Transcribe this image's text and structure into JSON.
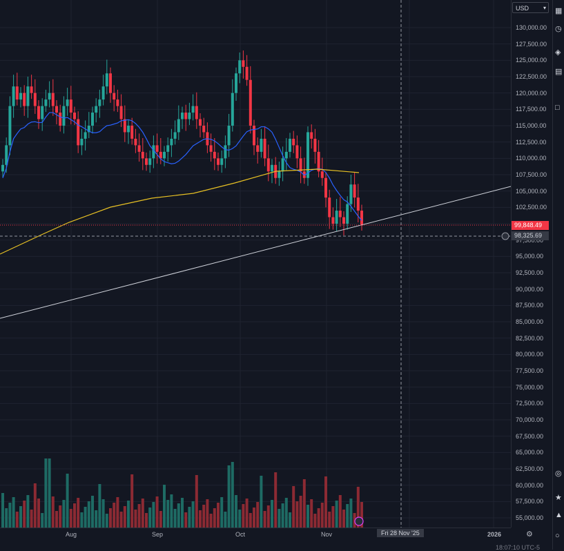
{
  "currency": {
    "value": "USD"
  },
  "price_axis": {
    "ticks": [
      "130,000.00",
      "127,500.00",
      "125,000.00",
      "122,500.00",
      "120,000.00",
      "117,500.00",
      "115,000.00",
      "112,500.00",
      "110,000.00",
      "107,500.00",
      "105,000.00",
      "102,500.00",
      "97,500.00",
      "95,000.00",
      "92,500.00",
      "90,000.00",
      "87,500.00",
      "85,000.00",
      "82,500.00",
      "80,000.00",
      "77,500.00",
      "75,000.00",
      "72,500.00",
      "70,000.00",
      "67,500.00",
      "65,000.00",
      "62,500.00",
      "60,000.00",
      "57,500.00",
      "55,000.00"
    ],
    "last_price": "99,848.49",
    "crosshair_price": "98,325.69"
  },
  "time_axis": {
    "labels": [
      "Aug",
      "Sep",
      "Oct",
      "Nov",
      "2026"
    ],
    "crosshair_date": "Fri 28 Nov '25"
  },
  "status": {
    "clock": "18:07:10 UTC-5"
  },
  "colors": {
    "up": "#26a69a",
    "down": "#f23645",
    "ma_fast": "#2962ff",
    "ma_slow": "#e8c124",
    "trendline": "#d1d4dc",
    "background": "#131722"
  },
  "toolbar_icons": [
    "calendar-icon",
    "clock-icon",
    "layers-icon",
    "data-window-icon",
    "chat-icon",
    "target-icon",
    "lightbulb-icon",
    "notification-icon",
    "help-icon"
  ],
  "chart_data": {
    "type": "candlestick",
    "y_range": [
      55000,
      131500
    ],
    "closes": [
      109000,
      112000,
      118000,
      121000,
      119000,
      120000,
      118000,
      121000,
      120000,
      118000,
      116000,
      118000,
      119000,
      120000,
      118000,
      117000,
      115000,
      118000,
      119000,
      117000,
      116000,
      112000,
      113000,
      114000,
      115000,
      117000,
      118000,
      119000,
      121000,
      123000,
      120000,
      119000,
      118000,
      116000,
      114000,
      115000,
      113000,
      112000,
      111000,
      110000,
      109000,
      110000,
      112000,
      111000,
      110000,
      111000,
      112000,
      113000,
      114000,
      116000,
      117000,
      116000,
      117000,
      118000,
      116000,
      115000,
      114000,
      112000,
      111000,
      110000,
      109000,
      110000,
      112000,
      115000,
      120000,
      123000,
      125000,
      124000,
      122000,
      115000,
      112000,
      111000,
      113000,
      110000,
      108000,
      109000,
      107000,
      108000,
      110000,
      111000,
      113000,
      112000,
      110000,
      108000,
      107000,
      114000,
      113000,
      111000,
      108000,
      107000,
      104000,
      101000,
      100000,
      102000,
      101000,
      100000,
      103000,
      106000,
      104000,
      102000,
      99848
    ]
  }
}
